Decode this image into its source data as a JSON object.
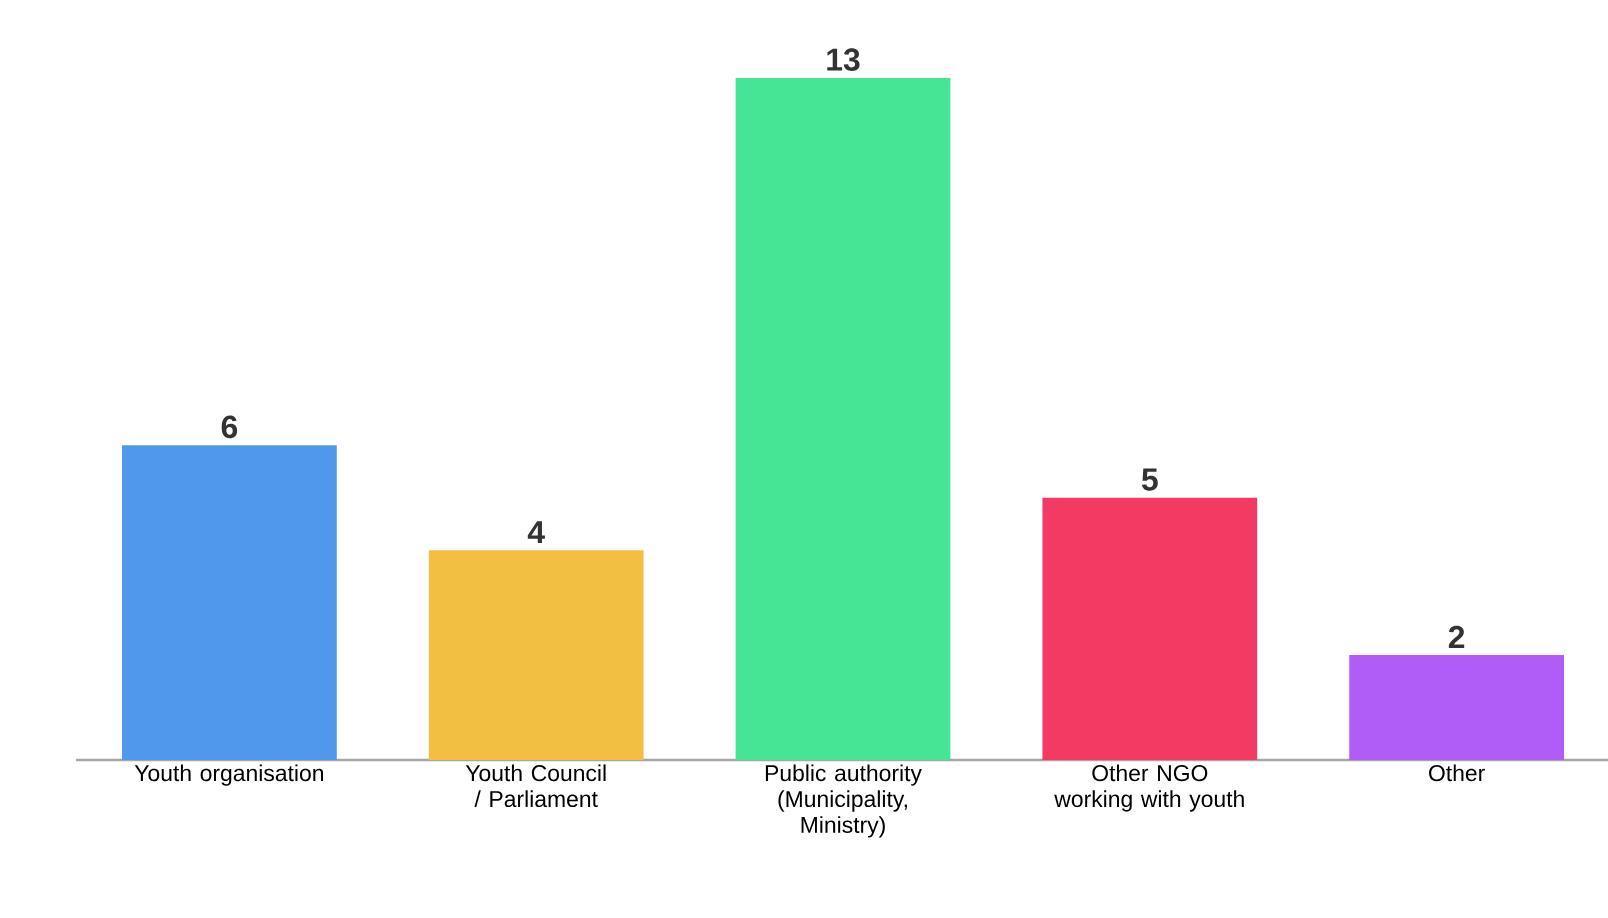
{
  "chart_data": {
    "type": "bar",
    "categories": [
      "Youth organisation",
      "Youth Council / Parliament",
      "Public authority (Municipality, Ministry)",
      "Other NGO working with youth",
      "Other"
    ],
    "values": [
      6,
      4,
      13,
      5,
      2
    ],
    "colors": [
      "#4f98ec",
      "#f2bf42",
      "#45e595",
      "#f33a63",
      "#b05cf6"
    ],
    "data_labels": true
  }
}
